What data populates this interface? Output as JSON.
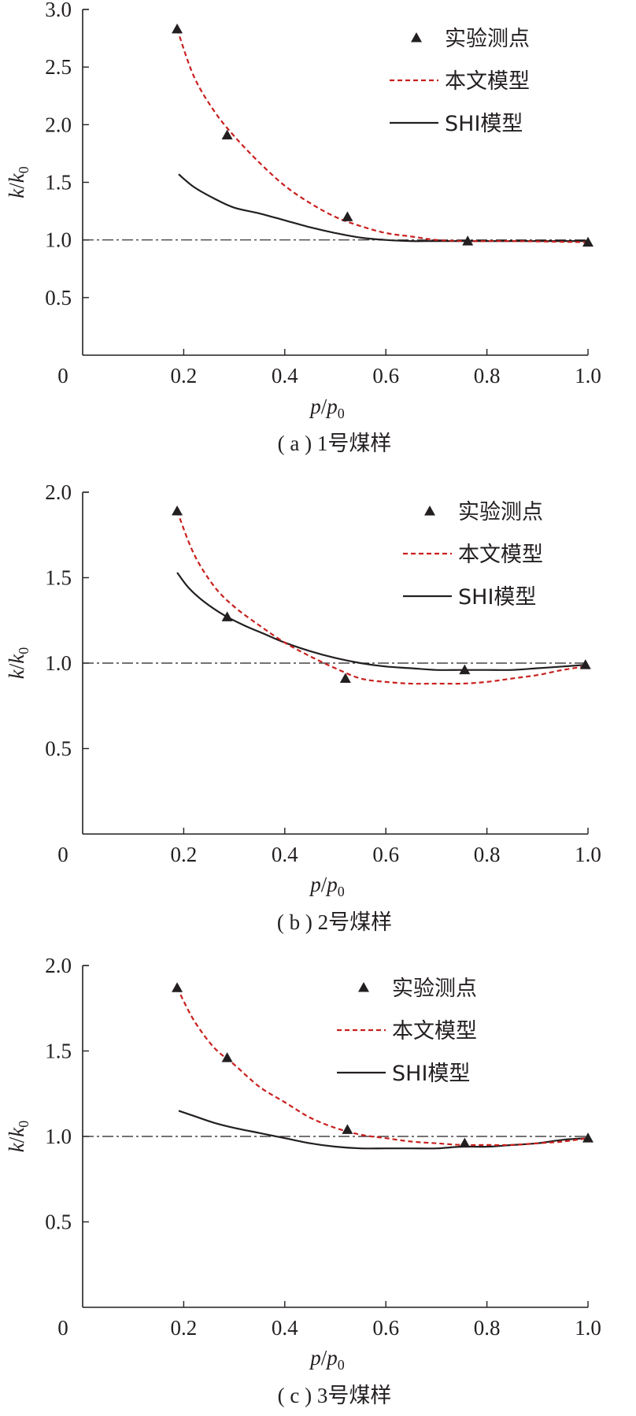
{
  "figure": {
    "xlabel_main": "p",
    "xlabel_slash": "/",
    "xlabel_sub_base": "p",
    "xlabel_sub": "0",
    "ylabel_main": "k",
    "ylabel_slash": "/",
    "ylabel_sub_base": "k",
    "ylabel_sub": "0",
    "origin_label": "0",
    "legend": {
      "points": "实验测点",
      "model": "本文模型",
      "shi": "SHI模型"
    },
    "colors": {
      "points": "#231f20",
      "model": "#c8201e",
      "shi": "#231f20",
      "axis": "#231f20"
    }
  },
  "chart_data": [
    {
      "type": "line",
      "caption": "( a ) 1号煤样",
      "xlim": [
        0,
        1.0
      ],
      "ylim": [
        0,
        3.0
      ],
      "xticks": [
        0.2,
        0.4,
        0.6,
        0.8,
        1.0
      ],
      "xtick_labels": [
        "0.2",
        "0.4",
        "0.6",
        "0.8",
        "1.0"
      ],
      "yticks": [
        0.5,
        1.0,
        1.5,
        2.0,
        2.5,
        3.0
      ],
      "ytick_labels": [
        "0.5",
        "1.0",
        "1.5",
        "2.0",
        "2.5",
        "3.0"
      ],
      "reference_line": 1.0,
      "legend_position": "top-right",
      "points": {
        "x": [
          0.187,
          0.286,
          0.524,
          0.762,
          1.0
        ],
        "y": [
          2.83,
          1.91,
          1.2,
          0.99,
          0.98
        ]
      },
      "model": {
        "x": [
          0.187,
          0.22,
          0.26,
          0.3,
          0.35,
          0.4,
          0.45,
          0.5,
          0.55,
          0.6,
          0.65,
          0.7,
          0.762,
          0.85,
          1.0
        ],
        "y": [
          2.83,
          2.42,
          2.12,
          1.9,
          1.67,
          1.47,
          1.32,
          1.2,
          1.12,
          1.06,
          1.03,
          1.0,
          0.99,
          0.99,
          0.98
        ]
      },
      "shi": {
        "x": [
          0.19,
          0.22,
          0.26,
          0.3,
          0.35,
          0.4,
          0.45,
          0.5,
          0.55,
          0.6,
          0.65,
          0.7,
          0.8,
          0.9,
          1.0
        ],
        "y": [
          1.57,
          1.46,
          1.36,
          1.28,
          1.23,
          1.17,
          1.11,
          1.06,
          1.02,
          1.0,
          0.99,
          0.99,
          0.99,
          0.99,
          0.99
        ]
      }
    },
    {
      "type": "line",
      "caption": "( b ) 2号煤样",
      "xlim": [
        0,
        1.0
      ],
      "ylim": [
        0,
        2.0
      ],
      "xticks": [
        0.2,
        0.4,
        0.6,
        0.8,
        1.0
      ],
      "xtick_labels": [
        "0.2",
        "0.4",
        "0.6",
        "0.8",
        "1.0"
      ],
      "yticks": [
        0.5,
        1.0,
        1.5,
        2.0
      ],
      "ytick_labels": [
        "0.5",
        "1.0",
        "1.5",
        "2.0"
      ],
      "reference_line": 1.0,
      "legend_position": "top-right",
      "points": {
        "x": [
          0.187,
          0.286,
          0.52,
          0.756,
          0.995
        ],
        "y": [
          1.89,
          1.27,
          0.91,
          0.96,
          0.99
        ]
      },
      "model": {
        "x": [
          0.187,
          0.22,
          0.26,
          0.3,
          0.35,
          0.4,
          0.45,
          0.5,
          0.55,
          0.6,
          0.65,
          0.7,
          0.75,
          0.8,
          0.85,
          0.9,
          0.95,
          0.995
        ],
        "y": [
          1.89,
          1.64,
          1.45,
          1.33,
          1.22,
          1.12,
          1.04,
          0.97,
          0.91,
          0.89,
          0.88,
          0.88,
          0.88,
          0.89,
          0.91,
          0.93,
          0.96,
          0.98
        ]
      },
      "shi": {
        "x": [
          0.187,
          0.21,
          0.24,
          0.28,
          0.32,
          0.36,
          0.4,
          0.45,
          0.5,
          0.55,
          0.6,
          0.65,
          0.7,
          0.75,
          0.8,
          0.85,
          0.9,
          0.95,
          0.995
        ],
        "y": [
          1.53,
          1.44,
          1.36,
          1.28,
          1.22,
          1.17,
          1.12,
          1.07,
          1.03,
          1.0,
          0.98,
          0.97,
          0.96,
          0.96,
          0.96,
          0.96,
          0.97,
          0.98,
          0.99
        ]
      }
    },
    {
      "type": "line",
      "caption": "( c ) 3号煤样",
      "xlim": [
        0,
        1.0
      ],
      "ylim": [
        0,
        2.0
      ],
      "xticks": [
        0.2,
        0.4,
        0.6,
        0.8,
        1.0
      ],
      "xtick_labels": [
        "0.2",
        "0.4",
        "0.6",
        "0.8",
        "1.0"
      ],
      "yticks": [
        0.5,
        1.0,
        1.5,
        2.0
      ],
      "ytick_labels": [
        "0.5",
        "1.0",
        "1.5",
        "2.0"
      ],
      "reference_line": 1.0,
      "legend_position": "top-right",
      "points": {
        "x": [
          0.187,
          0.286,
          0.524,
          0.756,
          1.0
        ],
        "y": [
          1.87,
          1.46,
          1.04,
          0.96,
          0.99
        ]
      },
      "model": {
        "x": [
          0.187,
          0.22,
          0.26,
          0.3,
          0.35,
          0.4,
          0.45,
          0.5,
          0.55,
          0.6,
          0.65,
          0.7,
          0.75,
          0.8,
          0.85,
          0.9,
          0.95,
          1.0
        ],
        "y": [
          1.87,
          1.68,
          1.52,
          1.42,
          1.29,
          1.2,
          1.11,
          1.05,
          1.01,
          0.99,
          0.97,
          0.96,
          0.95,
          0.95,
          0.95,
          0.96,
          0.97,
          0.99
        ]
      },
      "shi": {
        "x": [
          0.19,
          0.22,
          0.26,
          0.3,
          0.35,
          0.4,
          0.45,
          0.5,
          0.55,
          0.6,
          0.65,
          0.7,
          0.75,
          0.8,
          0.85,
          0.9,
          0.95,
          1.0
        ],
        "y": [
          1.15,
          1.12,
          1.08,
          1.05,
          1.02,
          0.99,
          0.96,
          0.94,
          0.93,
          0.93,
          0.93,
          0.93,
          0.94,
          0.94,
          0.95,
          0.96,
          0.98,
          0.99
        ]
      }
    }
  ]
}
